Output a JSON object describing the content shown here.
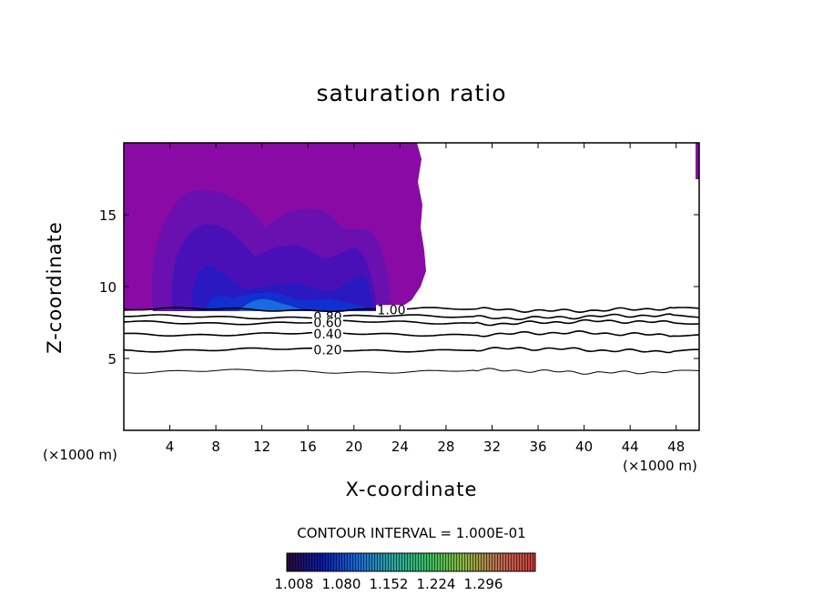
{
  "chart_data": {
    "type": "heatmap",
    "title": "saturation ratio",
    "xlabel": "X-coordinate",
    "ylabel": "Z-coordinate",
    "x_scale_note": "(×1000 m)",
    "xlim": [
      0,
      50
    ],
    "ylim": [
      0,
      20
    ],
    "x_ticks": [
      "4",
      "8",
      "12",
      "16",
      "20",
      "24",
      "28",
      "32",
      "36",
      "40",
      "44",
      "48"
    ],
    "y_ticks": [
      "5",
      "10",
      "15"
    ],
    "contour_interval_text": "CONTOUR INTERVAL = 1.000E-01",
    "contour_lines": [
      {
        "label": "1.00",
        "level": 1.0,
        "z": 8.4
      },
      {
        "label": "0.80",
        "level": 0.8,
        "z": 7.9
      },
      {
        "label": "0.60",
        "level": 0.6,
        "z": 7.5
      },
      {
        "label": "0.40",
        "level": 0.4,
        "z": 6.7
      },
      {
        "label": "0.20",
        "level": 0.2,
        "z": 5.6
      },
      {
        "label": "",
        "level": 0.1,
        "z": 4.1
      }
    ],
    "supersaturated_region": {
      "x_range": [
        0,
        25
      ],
      "z_range": [
        8.3,
        20
      ],
      "fill": "#8a0aa6"
    },
    "colorbar": {
      "labels": [
        "1.008",
        "1.080",
        "1.152",
        "1.224",
        "1.296"
      ],
      "stops": [
        "#2a0a3a",
        "#0a1aa8",
        "#1a6ad8",
        "#2aa8a0",
        "#3ac060",
        "#8ab840",
        "#c06a50",
        "#c83a3a"
      ]
    }
  }
}
